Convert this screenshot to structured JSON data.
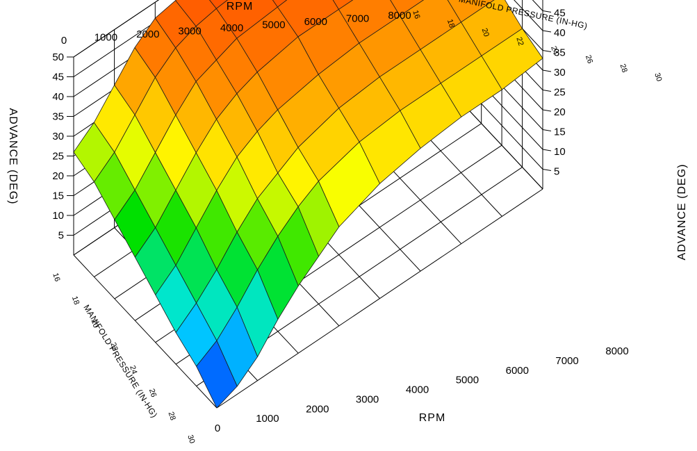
{
  "chart_data": {
    "type": "surface3d",
    "title": "",
    "x_axis": {
      "label": "RPM",
      "ticks": [
        "0",
        "1000",
        "2000",
        "3000",
        "4000",
        "5000",
        "6000",
        "7000",
        "8000"
      ],
      "range": [
        0,
        8000
      ]
    },
    "y_axis": {
      "label": "MANIFOLD PRESSURE (IN-HG)",
      "ticks_top": [
        "16",
        "18",
        "20",
        "22",
        "24",
        "26",
        "28",
        "30"
      ],
      "ticks_front": [
        "16",
        "18",
        "20",
        "22",
        "24",
        "26",
        "28",
        "30"
      ],
      "range": [
        16,
        30
      ]
    },
    "z_axis": {
      "label": "ADVANCE (DEG)",
      "ticks": [
        "5",
        "10",
        "15",
        "20",
        "25",
        "30",
        "35",
        "40",
        "45",
        "50"
      ],
      "range": [
        0,
        50
      ]
    },
    "colormap": [
      "#0020ff",
      "#00e8ff",
      "#00e000",
      "#ffff00",
      "#ff9000",
      "#ff4800"
    ],
    "rpm": [
      0,
      500,
      1000,
      1500,
      2000,
      2500,
      3000,
      4000,
      5000,
      6000,
      7000,
      8000
    ],
    "manifold_pressure": [
      16,
      18,
      20,
      22,
      24,
      26,
      28,
      30
    ],
    "advance": [
      [
        26,
        30,
        36,
        42,
        46,
        47,
        48,
        49,
        50,
        50,
        50,
        50
      ],
      [
        24,
        28,
        34,
        40,
        44,
        46,
        47,
        48,
        49,
        49,
        49,
        49
      ],
      [
        20,
        24,
        30,
        36,
        41,
        43,
        45,
        46,
        47,
        47,
        47,
        47
      ],
      [
        16,
        20,
        26,
        32,
        37,
        40,
        42,
        44,
        44,
        44,
        44,
        44
      ],
      [
        12,
        16,
        22,
        28,
        33,
        36,
        38,
        40,
        41,
        41,
        41,
        41
      ],
      [
        8,
        12,
        17,
        23,
        28,
        31,
        34,
        37,
        38,
        38,
        38,
        38
      ],
      [
        5,
        8,
        13,
        19,
        24,
        28,
        31,
        34,
        35,
        35,
        35,
        35
      ],
      [
        0,
        2,
        6,
        12,
        17,
        21,
        25,
        29,
        31,
        32,
        32,
        33
      ]
    ]
  }
}
